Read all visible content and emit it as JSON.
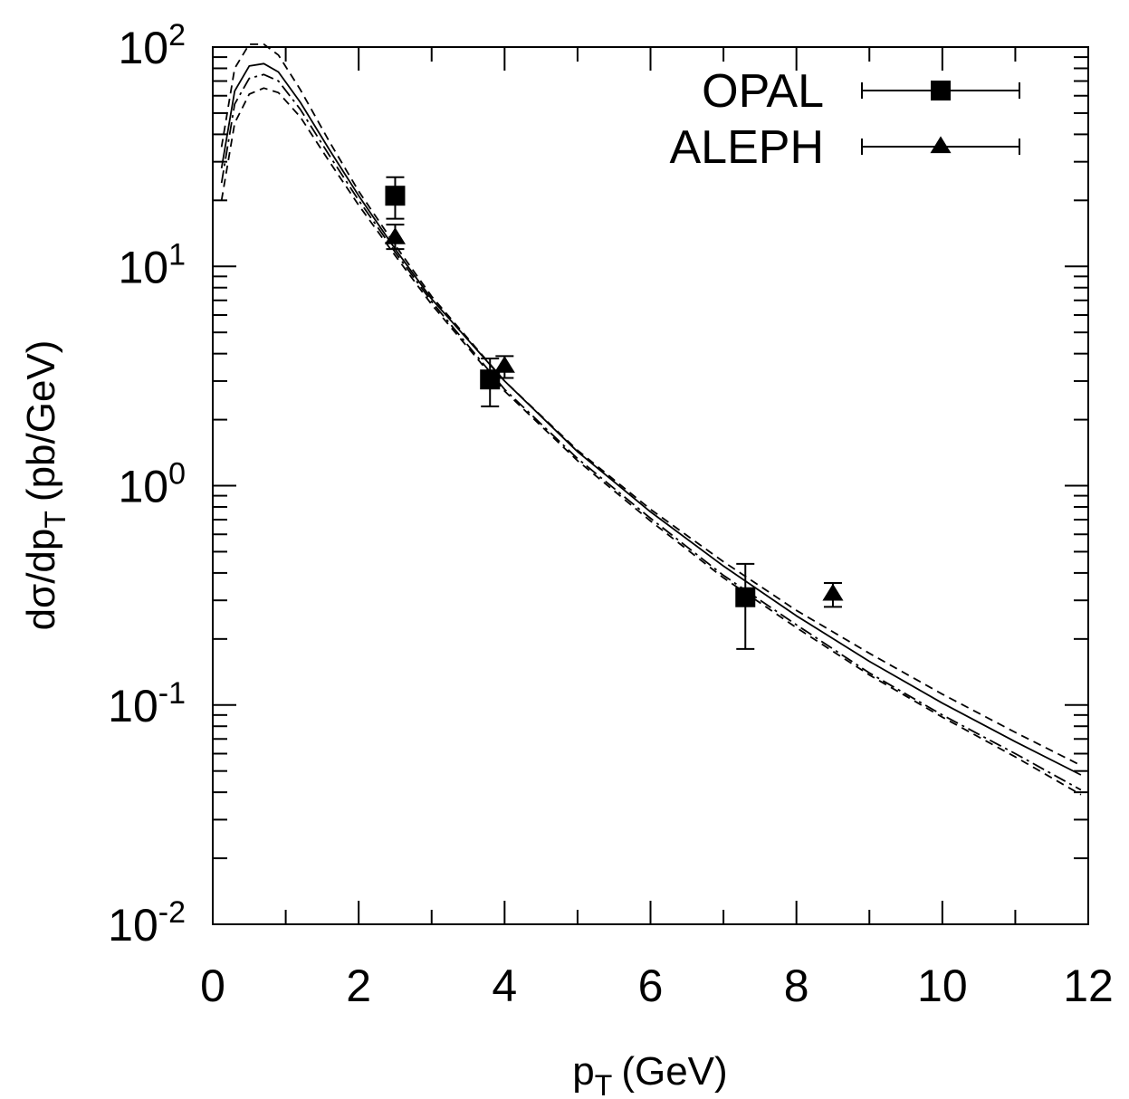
{
  "chart_data": {
    "type": "scatter",
    "title": "",
    "xlabel": "p",
    "xlabel_sub": "T",
    "xlabel_unit": "(GeV)",
    "ylabel": "dσ/dp",
    "ylabel_sub": "T",
    "ylabel_unit": "(pb/GeV)",
    "xlim": [
      0,
      12
    ],
    "ylim": [
      0.01,
      100
    ],
    "yscale": "log",
    "x_ticks": [
      "0",
      "2",
      "4",
      "6",
      "8",
      "10",
      "12"
    ],
    "y_ticks": [
      {
        "base": "10",
        "exp": "-2",
        "value": 0.01
      },
      {
        "base": "10",
        "exp": "-1",
        "value": 0.1
      },
      {
        "base": "10",
        "exp": "0",
        "value": 1
      },
      {
        "base": "10",
        "exp": "1",
        "value": 10
      },
      {
        "base": "10",
        "exp": "2",
        "value": 100
      }
    ],
    "legend_position": "top-right",
    "series": [
      {
        "name": "OPAL",
        "marker": "square",
        "points": [
          {
            "x": 2.5,
            "y": 21,
            "ylo": 16.5,
            "yhi": 25.5
          },
          {
            "x": 3.8,
            "y": 3.05,
            "ylo": 2.3,
            "yhi": 3.8
          },
          {
            "x": 7.3,
            "y": 0.31,
            "ylo": 0.18,
            "yhi": 0.44
          }
        ]
      },
      {
        "name": "ALEPH",
        "marker": "triangle",
        "points": [
          {
            "x": 2.5,
            "y": 13.5,
            "ylo": 12.0,
            "yhi": 15.5
          },
          {
            "x": 4.0,
            "y": 3.5,
            "ylo": 3.1,
            "yhi": 3.9
          },
          {
            "x": 8.5,
            "y": 0.32,
            "ylo": 0.28,
            "yhi": 0.36
          }
        ]
      }
    ],
    "curves": [
      {
        "style": "dashed",
        "x": [
          0.12,
          0.3,
          0.5,
          0.7,
          0.9,
          1.2,
          1.6,
          2.0,
          2.5,
          3.0,
          4.0,
          5.0,
          6.0,
          7.0,
          8.0,
          9.0,
          10.0,
          11.0,
          11.9
        ],
        "y": [
          35,
          80,
          103,
          103,
          92,
          64,
          37,
          22,
          12.5,
          7.3,
          3.0,
          1.45,
          0.78,
          0.45,
          0.27,
          0.172,
          0.112,
          0.075,
          0.053
        ]
      },
      {
        "style": "solid",
        "x": [
          0.12,
          0.3,
          0.5,
          0.7,
          0.9,
          1.2,
          1.6,
          2.0,
          2.5,
          3.0,
          4.0,
          5.0,
          6.0,
          7.0,
          8.0,
          9.0,
          10.0,
          11.0,
          11.9
        ],
        "y": [
          28,
          63,
          82,
          84,
          77,
          56,
          34,
          21,
          12.0,
          7.1,
          3.0,
          1.43,
          0.76,
          0.43,
          0.255,
          0.158,
          0.102,
          0.068,
          0.048
        ]
      },
      {
        "style": "dashdot",
        "x": [
          0.12,
          0.3,
          0.5,
          0.7,
          0.9,
          1.2,
          1.6,
          2.0,
          2.5,
          3.0,
          4.0,
          5.0,
          6.0,
          7.0,
          8.0,
          9.0,
          10.0,
          11.0,
          11.9
        ],
        "y": [
          24,
          55,
          72,
          75,
          70,
          52,
          32,
          20,
          11.6,
          6.9,
          2.75,
          1.33,
          0.71,
          0.39,
          0.232,
          0.14,
          0.09,
          0.06,
          0.041
        ]
      },
      {
        "style": "dashed",
        "x": [
          0.12,
          0.3,
          0.5,
          0.7,
          0.9,
          1.2,
          1.6,
          2.0,
          2.5,
          3.0,
          4.0,
          5.0,
          6.0,
          7.0,
          8.0,
          9.0,
          10.0,
          11.0,
          11.9
        ],
        "y": [
          20,
          45,
          61,
          65,
          62,
          48,
          30,
          19,
          11.2,
          6.7,
          2.7,
          1.3,
          0.69,
          0.38,
          0.225,
          0.137,
          0.088,
          0.058,
          0.039
        ]
      }
    ]
  }
}
